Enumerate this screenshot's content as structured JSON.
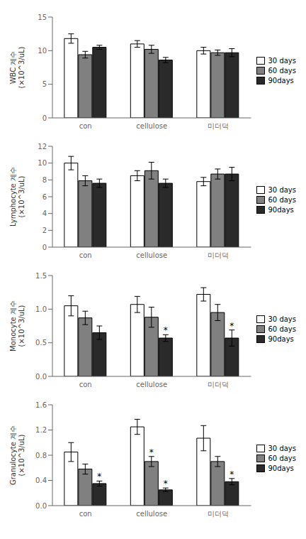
{
  "chart_data": [
    {
      "type": "bar",
      "ylabel": "WBC 계수\n(×10^3/uL)",
      "categories": [
        "con",
        "cellulose",
        "미더덕"
      ],
      "ylim": [
        0,
        15
      ],
      "yticks": [
        0,
        5,
        10,
        15
      ],
      "legend": "right",
      "grid": false,
      "annotation": "*",
      "series": [
        {
          "name": "30 days",
          "color": "#ffffff",
          "values": [
            11.8,
            11.0,
            10.0
          ],
          "errors": [
            0.7,
            0.5,
            0.5
          ],
          "stars": [
            false,
            false,
            false
          ]
        },
        {
          "name": "60 days",
          "color": "#808080",
          "values": [
            9.4,
            10.2,
            9.7
          ],
          "errors": [
            0.5,
            0.6,
            0.4
          ],
          "stars": [
            false,
            false,
            false
          ]
        },
        {
          "name": "90days",
          "color": "#2a2a2a",
          "values": [
            10.5,
            8.6,
            9.7
          ],
          "errors": [
            0.3,
            0.4,
            0.6
          ],
          "stars": [
            false,
            false,
            false
          ]
        }
      ]
    },
    {
      "type": "bar",
      "ylabel": "Lymphocyte 계수\n(×10^3/uL)",
      "categories": [
        "con",
        "cellulose",
        "미더덕"
      ],
      "ylim": [
        0,
        12
      ],
      "yticks": [
        0,
        2,
        4,
        6,
        8,
        10,
        12
      ],
      "legend": "right",
      "grid": false,
      "annotation": "*",
      "series": [
        {
          "name": "30 days",
          "color": "#ffffff",
          "values": [
            10.0,
            8.5,
            7.8
          ],
          "errors": [
            0.8,
            0.6,
            0.5
          ],
          "stars": [
            false,
            false,
            false
          ]
        },
        {
          "name": "60 days",
          "color": "#808080",
          "values": [
            7.9,
            9.1,
            8.7
          ],
          "errors": [
            0.6,
            1.0,
            0.6
          ],
          "stars": [
            false,
            false,
            false
          ]
        },
        {
          "name": "90days",
          "color": "#2a2a2a",
          "values": [
            7.6,
            7.6,
            8.7
          ],
          "errors": [
            0.5,
            0.5,
            0.8
          ],
          "stars": [
            false,
            false,
            false
          ]
        }
      ]
    },
    {
      "type": "bar",
      "ylabel": "Monocyte 계수\n(×10^3/uL)",
      "categories": [
        "con",
        "cellulose",
        "미더덕"
      ],
      "ylim": [
        0,
        1.5
      ],
      "yticks": [
        {
          "value": 0,
          "label": "0.0"
        },
        0.5,
        {
          "value": 1.0,
          "label": "1.0"
        },
        1.5
      ],
      "legend": "right",
      "grid": false,
      "annotation": "*",
      "series": [
        {
          "name": "30 days",
          "color": "#ffffff",
          "values": [
            1.05,
            1.07,
            1.22
          ],
          "errors": [
            0.15,
            0.12,
            0.1
          ],
          "stars": [
            false,
            false,
            false
          ]
        },
        {
          "name": "60 days",
          "color": "#808080",
          "values": [
            0.87,
            0.88,
            0.95
          ],
          "errors": [
            0.1,
            0.15,
            0.12
          ],
          "stars": [
            false,
            false,
            false
          ]
        },
        {
          "name": "90days",
          "color": "#2a2a2a",
          "values": [
            0.65,
            0.57,
            0.57
          ],
          "errors": [
            0.1,
            0.05,
            0.12
          ],
          "stars": [
            false,
            true,
            true
          ]
        }
      ]
    },
    {
      "type": "bar",
      "ylabel": "Granulocyte 계수\n(×10^3/uL)",
      "categories": [
        "con",
        "cellulose",
        "미더덕"
      ],
      "ylim": [
        0,
        1.6
      ],
      "yticks": [
        {
          "value": 0,
          "label": "0.0"
        },
        0.4,
        0.8,
        1.2,
        1.6
      ],
      "legend": "right",
      "grid": false,
      "annotation": "*",
      "series": [
        {
          "name": "30 days",
          "color": "#ffffff",
          "values": [
            0.85,
            1.25,
            1.07
          ],
          "errors": [
            0.15,
            0.12,
            0.2
          ],
          "stars": [
            false,
            false,
            false
          ]
        },
        {
          "name": "60 days",
          "color": "#808080",
          "values": [
            0.58,
            0.7,
            0.7
          ],
          "errors": [
            0.08,
            0.08,
            0.08
          ],
          "stars": [
            false,
            true,
            false
          ]
        },
        {
          "name": "90days",
          "color": "#2a2a2a",
          "values": [
            0.35,
            0.25,
            0.38
          ],
          "errors": [
            0.04,
            0.03,
            0.05
          ],
          "stars": [
            true,
            true,
            true
          ]
        }
      ]
    }
  ]
}
